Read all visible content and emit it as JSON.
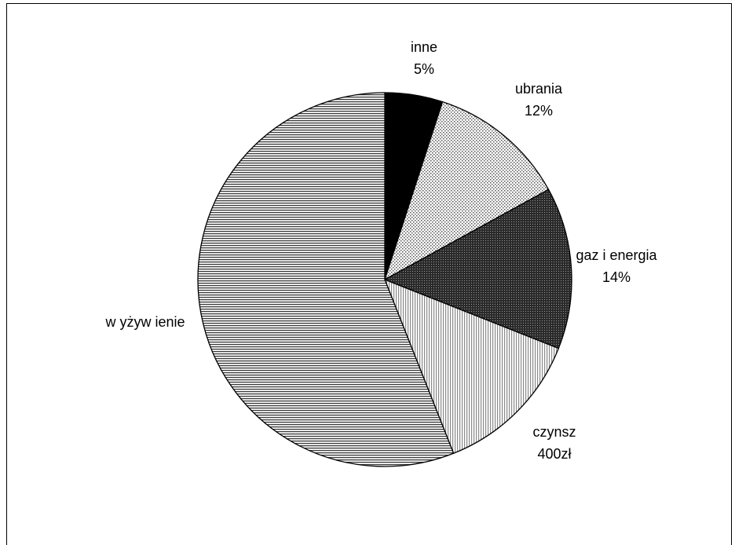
{
  "chart_data": {
    "type": "pie",
    "title": "",
    "slices": [
      {
        "name": "inne",
        "label_value": "5%",
        "value": 5,
        "fill": "black"
      },
      {
        "name": "ubrania",
        "label_value": "12%",
        "value": 12,
        "fill": "dots-light"
      },
      {
        "name": "gaz i energia",
        "label_value": "14%",
        "value": 14,
        "fill": "dots-dark"
      },
      {
        "name": "czynsz",
        "label_value": "400zł",
        "value": 13,
        "fill": "vertical-lines"
      },
      {
        "name": "w yżyw ienie",
        "label_value": "",
        "value": 56,
        "fill": "horizontal-lines"
      }
    ],
    "start_angle_deg": 0,
    "direction": "clockwise"
  }
}
